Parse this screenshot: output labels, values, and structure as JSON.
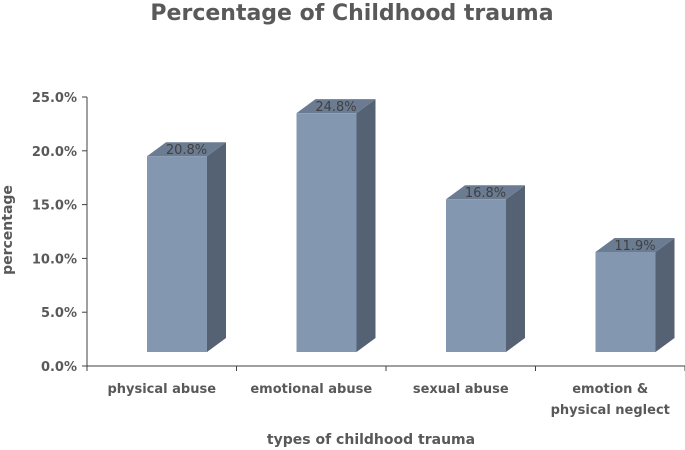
{
  "chart_data": {
    "type": "bar",
    "title": "Percentage of Childhood trauma",
    "xlabel": "types of childhood trauma",
    "ylabel": "percentage",
    "categories": [
      [
        "physical abuse"
      ],
      [
        "emotional abuse"
      ],
      [
        "sexual abuse"
      ],
      [
        "emotion &",
        "physical neglect"
      ]
    ],
    "values": [
      20.8,
      24.8,
      16.8,
      11.9
    ],
    "data_labels": [
      "20.8%",
      "24.8%",
      "16.8%",
      "11.9%"
    ],
    "ylim": [
      0,
      25
    ],
    "yticks": [
      "0.0%",
      "5.0%",
      "10.0%",
      "15.0%",
      "20.0%",
      "25.0%"
    ],
    "grid": false,
    "legend": "none",
    "style": "3d-column",
    "colors": {
      "front": "#8497B0",
      "side": "#556273",
      "top": "#6B7C92",
      "axis": "#404040",
      "text": "#595959"
    }
  }
}
